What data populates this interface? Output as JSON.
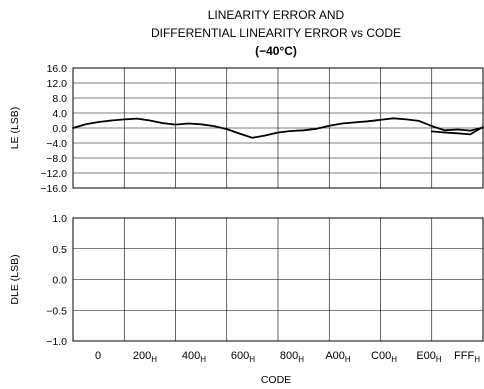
{
  "chart_data": {
    "type": "line",
    "title_lines": [
      "LINEARITY ERROR AND",
      "DIFFERENTIAL LINEARITY ERROR vs CODE",
      "(−40°C)"
    ],
    "xlabel": "CODE",
    "x_ticks": [
      {
        "base": "0",
        "sub": ""
      },
      {
        "base": "200",
        "sub": "H"
      },
      {
        "base": "400",
        "sub": "H"
      },
      {
        "base": "600",
        "sub": "H"
      },
      {
        "base": "800",
        "sub": "H"
      },
      {
        "base": "A00",
        "sub": "H"
      },
      {
        "base": "C00",
        "sub": "H"
      },
      {
        "base": "E00",
        "sub": "H"
      },
      {
        "base": "FFF",
        "sub": "H"
      }
    ],
    "panels": [
      {
        "name": "le",
        "ylabel": "LE (LSB)",
        "ylim": [
          -16,
          16
        ],
        "y_ticks": [
          "16.0",
          "12.0",
          "8.0",
          "4.0",
          "0.0",
          "−4.0",
          "−8.0",
          "−12.0",
          "−16.0"
        ],
        "y_tick_values": [
          16,
          12,
          8,
          4,
          0,
          -4,
          -8,
          -12,
          -16
        ],
        "x_gridlines": 8,
        "series": [
          {
            "x": [
              0,
              128,
              256,
              384,
              512,
              640,
              768,
              896,
              1024,
              1152,
              1280,
              1408,
              1536,
              1664,
              1792,
              1920,
              2048,
              2176,
              2304,
              2432,
              2560,
              2688,
              2816,
              2944,
              3072,
              3200,
              3328,
              3456,
              3584,
              3712,
              3840,
              3968,
              4095
            ],
            "y": [
              0.0,
              1.0,
              1.6,
              2.0,
              2.3,
              2.5,
              2.0,
              1.3,
              0.9,
              1.2,
              1.0,
              0.5,
              -0.3,
              -1.5,
              -2.6,
              -2.0,
              -1.2,
              -0.8,
              -0.6,
              -0.2,
              0.6,
              1.2,
              1.5,
              1.8,
              2.2,
              2.6,
              2.3,
              1.9,
              0.5,
              -0.6,
              -0.4,
              -0.7,
              0.1
            ]
          },
          {
            "x": [
              3584,
              3712,
              3840,
              3968,
              4095
            ],
            "y": [
              -0.9,
              -1.2,
              -1.4,
              -1.7,
              0.3
            ]
          }
        ]
      },
      {
        "name": "dle",
        "ylabel": "DLE (LSB)",
        "ylim": [
          -1.0,
          1.0
        ],
        "y_ticks": [
          "1.0",
          "0.5",
          "0.0",
          "−0.5",
          "−1.0"
        ],
        "y_tick_values": [
          1.0,
          0.5,
          0.0,
          -0.5,
          -1.0
        ],
        "x_gridlines": 8,
        "series": []
      }
    ]
  }
}
